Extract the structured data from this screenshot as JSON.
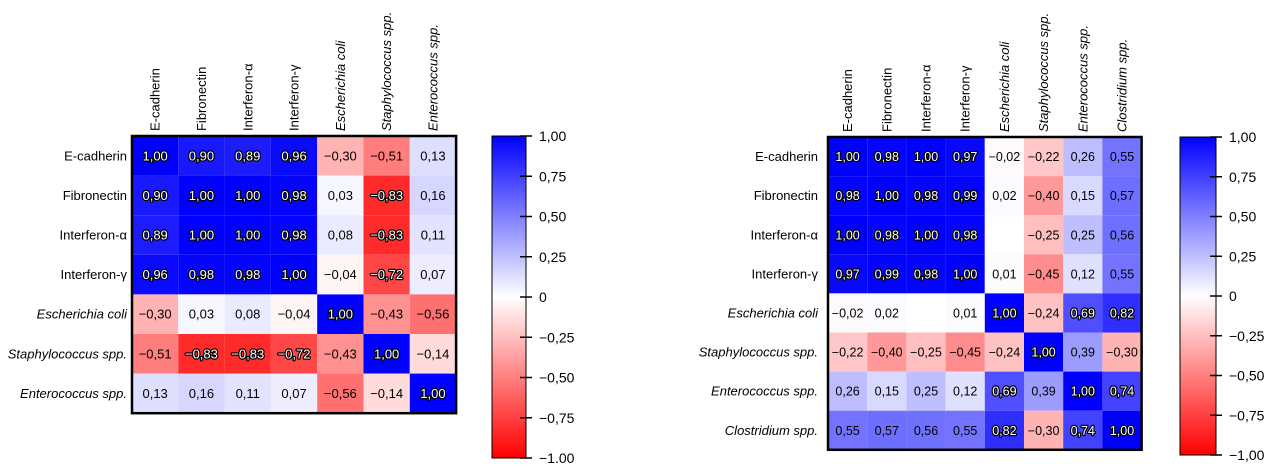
{
  "colorbar": {
    "ticks": [
      "1,00",
      "0,75",
      "0,50",
      "0,25",
      "0",
      "−0,25",
      "−0,50",
      "−0,75",
      "−1,00"
    ],
    "values": [
      1,
      0.75,
      0.5,
      0.25,
      0,
      -0.25,
      -0.5,
      -0.75,
      -1
    ],
    "colors": {
      "positive": "#0000ff",
      "zero": "#ffffff",
      "negative": "#ff0000"
    }
  },
  "chart_data": [
    {
      "type": "heatmap",
      "title": "",
      "labels": [
        "E-cadherin",
        "Fibronectin",
        "Interferon-α",
        "Interferon-γ",
        "Escherichia coli",
        "Staphylococcus spp.",
        "Enterococcus spp."
      ],
      "italic": [
        false,
        false,
        false,
        false,
        true,
        true,
        true
      ],
      "vmin": -1,
      "vmax": 1,
      "values": [
        [
          1.0,
          0.9,
          0.89,
          0.96,
          -0.3,
          -0.51,
          0.13
        ],
        [
          0.9,
          1.0,
          1.0,
          0.98,
          0.03,
          -0.83,
          0.16
        ],
        [
          0.89,
          1.0,
          1.0,
          0.98,
          0.08,
          -0.83,
          0.11
        ],
        [
          0.96,
          0.98,
          0.98,
          1.0,
          -0.04,
          -0.72,
          0.07
        ],
        [
          -0.3,
          0.03,
          0.08,
          -0.04,
          1.0,
          -0.43,
          -0.56
        ],
        [
          -0.51,
          -0.83,
          -0.83,
          -0.72,
          -0.43,
          1.0,
          -0.14
        ],
        [
          0.13,
          0.16,
          0.11,
          0.07,
          -0.56,
          -0.14,
          1.0
        ]
      ],
      "value_labels": [
        [
          "1,00",
          "0,90",
          "0,89",
          "0,96",
          "−0,30",
          "−0,51",
          "0,13"
        ],
        [
          "0,90",
          "1,00",
          "1,00",
          "0,98",
          "0,03",
          "−0,83",
          "0,16"
        ],
        [
          "0,89",
          "1,00",
          "1,00",
          "0,98",
          "0,08",
          "−0,83",
          "0,11"
        ],
        [
          "0,96",
          "0,98",
          "0,98",
          "1,00",
          "−0,04",
          "−0,72",
          "0,07"
        ],
        [
          "−0,30",
          "0,03",
          "0,08",
          "−0,04",
          "1,00",
          "−0,43",
          "−0,56"
        ],
        [
          "−0,51",
          "−0,83",
          "−0,83",
          "−0,72",
          "−0,43",
          "1,00",
          "−0,14"
        ],
        [
          "0,13",
          "0,16",
          "0,11",
          "0,07",
          "−0,56",
          "−0,14",
          "1,00"
        ]
      ]
    },
    {
      "type": "heatmap",
      "title": "",
      "labels": [
        "E-cadherin",
        "Fibronectin",
        "Interferon-α",
        "Interferon-γ",
        "Escherichia coli",
        "Staphylococcus spp.",
        "Enterococcus spp.",
        "Clostridium spp."
      ],
      "italic": [
        false,
        false,
        false,
        false,
        true,
        true,
        true,
        true
      ],
      "vmin": -1,
      "vmax": 1,
      "values": [
        [
          1.0,
          0.98,
          1.0,
          0.97,
          -0.02,
          -0.22,
          0.26,
          0.55
        ],
        [
          0.98,
          1.0,
          0.98,
          0.99,
          0.02,
          -0.4,
          0.15,
          0.57
        ],
        [
          1.0,
          0.98,
          1.0,
          0.98,
          null,
          -0.25,
          0.25,
          0.56
        ],
        [
          0.97,
          0.99,
          0.98,
          1.0,
          0.01,
          -0.45,
          0.12,
          0.55
        ],
        [
          -0.02,
          0.02,
          null,
          0.01,
          1.0,
          -0.24,
          0.69,
          0.82
        ],
        [
          -0.22,
          -0.4,
          -0.25,
          -0.45,
          -0.24,
          1.0,
          0.39,
          -0.3
        ],
        [
          0.26,
          0.15,
          0.25,
          0.12,
          0.69,
          0.39,
          1.0,
          0.74
        ],
        [
          0.55,
          0.57,
          0.56,
          0.55,
          0.82,
          -0.3,
          0.74,
          1.0
        ]
      ],
      "value_labels": [
        [
          "1,00",
          "0,98",
          "1,00",
          "0,97",
          "−0,02",
          "−0,22",
          "0,26",
          "0,55"
        ],
        [
          "0,98",
          "1,00",
          "0,98",
          "0,99",
          "0,02",
          "−0,40",
          "0,15",
          "0,57"
        ],
        [
          "1,00",
          "0,98",
          "1,00",
          "0,98",
          "",
          "−0,25",
          "0,25",
          "0,56"
        ],
        [
          "0,97",
          "0,99",
          "0,98",
          "1,00",
          "0,01",
          "−0,45",
          "0,12",
          "0,55"
        ],
        [
          "−0,02",
          "0,02",
          "",
          "0,01",
          "1,00",
          "−0,24",
          "0,69",
          "0,82"
        ],
        [
          "−0,22",
          "−0,40",
          "−0,25",
          "−0,45",
          "−0,24",
          "1,00",
          "0,39",
          "−0,30"
        ],
        [
          "0,26",
          "0,15",
          "0,25",
          "0,12",
          "0,69",
          "0,39",
          "1,00",
          "0,74"
        ],
        [
          "0,55",
          "0,57",
          "0,56",
          "0,55",
          "0,82",
          "−0,30",
          "0,74",
          "1,00"
        ]
      ]
    }
  ]
}
